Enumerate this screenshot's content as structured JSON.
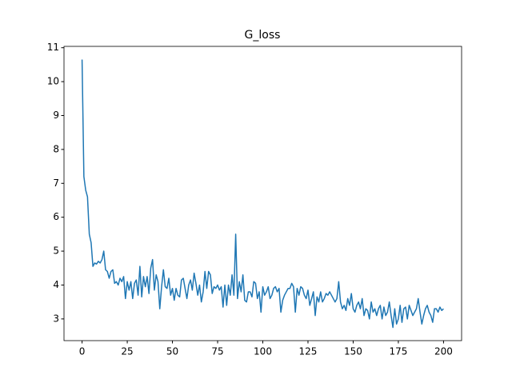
{
  "chart_data": {
    "type": "line",
    "title": "G_loss",
    "x": [
      0,
      1,
      2,
      3,
      4,
      5,
      6,
      7,
      8,
      9,
      10,
      11,
      12,
      13,
      14,
      15,
      16,
      17,
      18,
      19,
      20,
      21,
      22,
      23,
      24,
      25,
      26,
      27,
      28,
      29,
      30,
      31,
      32,
      33,
      34,
      35,
      36,
      37,
      38,
      39,
      40,
      41,
      42,
      43,
      44,
      45,
      46,
      47,
      48,
      49,
      50,
      51,
      52,
      53,
      54,
      55,
      56,
      57,
      58,
      59,
      60,
      61,
      62,
      63,
      64,
      65,
      66,
      67,
      68,
      69,
      70,
      71,
      72,
      73,
      74,
      75,
      76,
      77,
      78,
      79,
      80,
      81,
      82,
      83,
      84,
      85,
      86,
      87,
      88,
      89,
      90,
      91,
      92,
      93,
      94,
      95,
      96,
      97,
      98,
      99,
      100,
      101,
      102,
      103,
      104,
      105,
      106,
      107,
      108,
      109,
      110,
      111,
      112,
      113,
      114,
      115,
      116,
      117,
      118,
      119,
      120,
      121,
      122,
      123,
      124,
      125,
      126,
      127,
      128,
      129,
      130,
      131,
      132,
      133,
      134,
      135,
      136,
      137,
      138,
      139,
      140,
      141,
      142,
      143,
      144,
      145,
      146,
      147,
      148,
      149,
      150,
      151,
      152,
      153,
      154,
      155,
      156,
      157,
      158,
      159,
      160,
      161,
      162,
      163,
      164,
      165,
      166,
      167,
      168,
      169,
      170,
      171,
      172,
      173,
      174,
      175,
      176,
      177,
      178,
      179,
      180,
      181,
      182,
      183,
      184,
      185,
      186,
      187,
      188,
      189,
      190,
      191,
      192,
      193,
      194,
      195,
      196,
      197,
      198,
      199,
      200
    ],
    "series": [
      {
        "name": "G_loss",
        "color": "#1f77b4",
        "values": [
          10.65,
          7.2,
          6.8,
          6.6,
          5.5,
          5.25,
          4.55,
          4.65,
          4.62,
          4.7,
          4.65,
          4.75,
          5.0,
          4.45,
          4.4,
          4.2,
          4.4,
          4.45,
          4.05,
          4.1,
          4.0,
          4.2,
          4.1,
          4.25,
          3.6,
          4.1,
          3.85,
          4.1,
          3.6,
          4.05,
          4.15,
          3.7,
          4.55,
          3.65,
          4.25,
          3.95,
          4.25,
          3.75,
          4.5,
          4.75,
          3.85,
          4.3,
          4.1,
          3.3,
          3.95,
          4.45,
          3.95,
          3.9,
          4.2,
          3.7,
          3.9,
          3.55,
          3.9,
          3.7,
          3.65,
          4.15,
          4.2,
          3.9,
          3.6,
          4.0,
          4.15,
          3.85,
          4.35,
          4.05,
          3.7,
          4.0,
          3.5,
          3.8,
          4.4,
          3.9,
          4.4,
          4.3,
          3.75,
          3.95,
          3.9,
          4.0,
          3.85,
          3.95,
          3.35,
          4.0,
          3.4,
          4.0,
          3.7,
          4.3,
          3.7,
          5.5,
          3.6,
          4.1,
          3.8,
          4.3,
          3.55,
          3.5,
          3.8,
          3.8,
          3.65,
          4.1,
          4.05,
          3.6,
          3.8,
          3.2,
          3.95,
          3.7,
          3.8,
          3.95,
          3.6,
          3.7,
          3.9,
          3.95,
          3.8,
          3.9,
          3.2,
          3.55,
          3.7,
          3.8,
          3.9,
          3.9,
          4.05,
          3.95,
          3.2,
          3.9,
          3.7,
          3.95,
          3.9,
          3.7,
          3.6,
          3.85,
          3.4,
          3.6,
          3.8,
          3.1,
          3.65,
          3.5,
          3.8,
          3.5,
          3.6,
          3.75,
          3.7,
          3.8,
          3.7,
          3.6,
          3.5,
          3.6,
          4.1,
          3.5,
          3.3,
          3.4,
          3.25,
          3.6,
          3.4,
          3.75,
          3.3,
          3.2,
          3.4,
          3.5,
          3.3,
          3.6,
          3.1,
          3.3,
          3.25,
          3.0,
          3.5,
          3.2,
          3.3,
          3.1,
          3.3,
          3.4,
          3.0,
          3.35,
          3.1,
          3.2,
          3.5,
          3.1,
          2.75,
          3.3,
          2.85,
          3.0,
          3.4,
          2.9,
          3.3,
          3.35,
          3.0,
          3.4,
          3.25,
          3.1,
          3.2,
          3.3,
          3.6,
          3.2,
          2.85,
          3.1,
          3.3,
          3.4,
          3.2,
          3.1,
          2.9,
          3.3,
          3.3,
          3.2,
          3.35,
          3.25,
          3.3
        ]
      }
    ],
    "xlim": [
      -10,
      210
    ],
    "ylim": [
      2.36,
      11.04
    ],
    "xticks": [
      0,
      25,
      50,
      75,
      100,
      125,
      150,
      175,
      200
    ],
    "yticks": [
      3,
      4,
      5,
      6,
      7,
      8,
      9,
      10,
      11
    ]
  }
}
